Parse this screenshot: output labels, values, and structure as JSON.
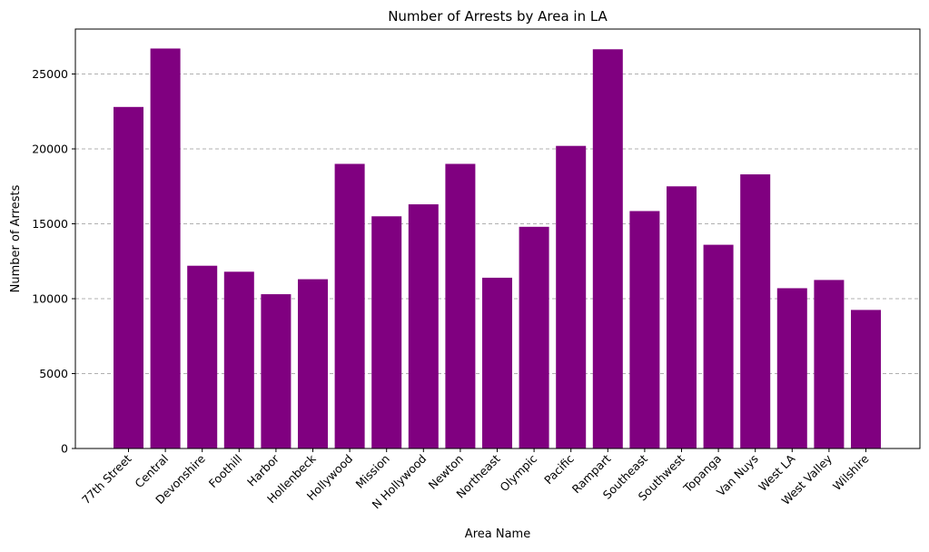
{
  "chart_data": {
    "type": "bar",
    "title": "Number of Arrests by Area in LA",
    "xlabel": "Area Name",
    "ylabel": "Number of Arrests",
    "categories": [
      "77th Street",
      "Central",
      "Devonshire",
      "Foothill",
      "Harbor",
      "Hollenbeck",
      "Hollywood",
      "Mission",
      "N Hollywood",
      "Newton",
      "Northeast",
      "Olympic",
      "Pacific",
      "Rampart",
      "Southeast",
      "Southwest",
      "Topanga",
      "Van Nuys",
      "West LA",
      "West Valley",
      "Wilshire"
    ],
    "values": [
      22800,
      26700,
      12200,
      11800,
      10300,
      11300,
      19000,
      15500,
      16300,
      19000,
      11400,
      14800,
      20200,
      26650,
      15850,
      17500,
      13600,
      18300,
      10700,
      11250,
      9250
    ],
    "ylim": [
      0,
      28000
    ],
    "yticks": [
      0,
      5000,
      10000,
      15000,
      20000,
      25000
    ],
    "bar_color": "#800080",
    "grid": "y-dashed",
    "grid_color": "#b0b0b0"
  }
}
